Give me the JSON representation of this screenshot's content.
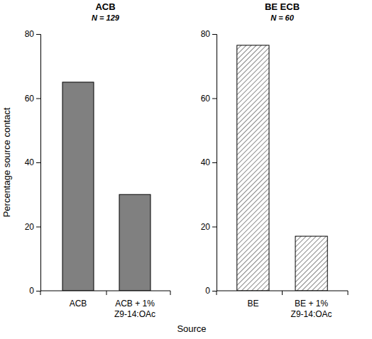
{
  "chart_data": [
    {
      "type": "bar",
      "title": "ACB",
      "subtitle": "N = 129",
      "categories": [
        "ACB",
        "ACB + 1% Z9-14:OAc"
      ],
      "values": [
        65,
        30
      ],
      "color": "#808080",
      "line_style": "solid",
      "ylim": [
        0,
        80
      ],
      "yticks": [
        0,
        20,
        40,
        60,
        80
      ]
    },
    {
      "type": "bar",
      "title": "BE ECB",
      "subtitle": "N = 60",
      "categories": [
        "BE",
        "BE + 1% Z9-14:OAc"
      ],
      "values": [
        76.5,
        17
      ],
      "color": "#8a8a8a",
      "line_style": "hatched",
      "ylim": [
        0,
        80
      ],
      "yticks": [
        0,
        20,
        40,
        60,
        80
      ]
    }
  ],
  "xlabel": "Source",
  "ylabel": "Percentage source contact"
}
